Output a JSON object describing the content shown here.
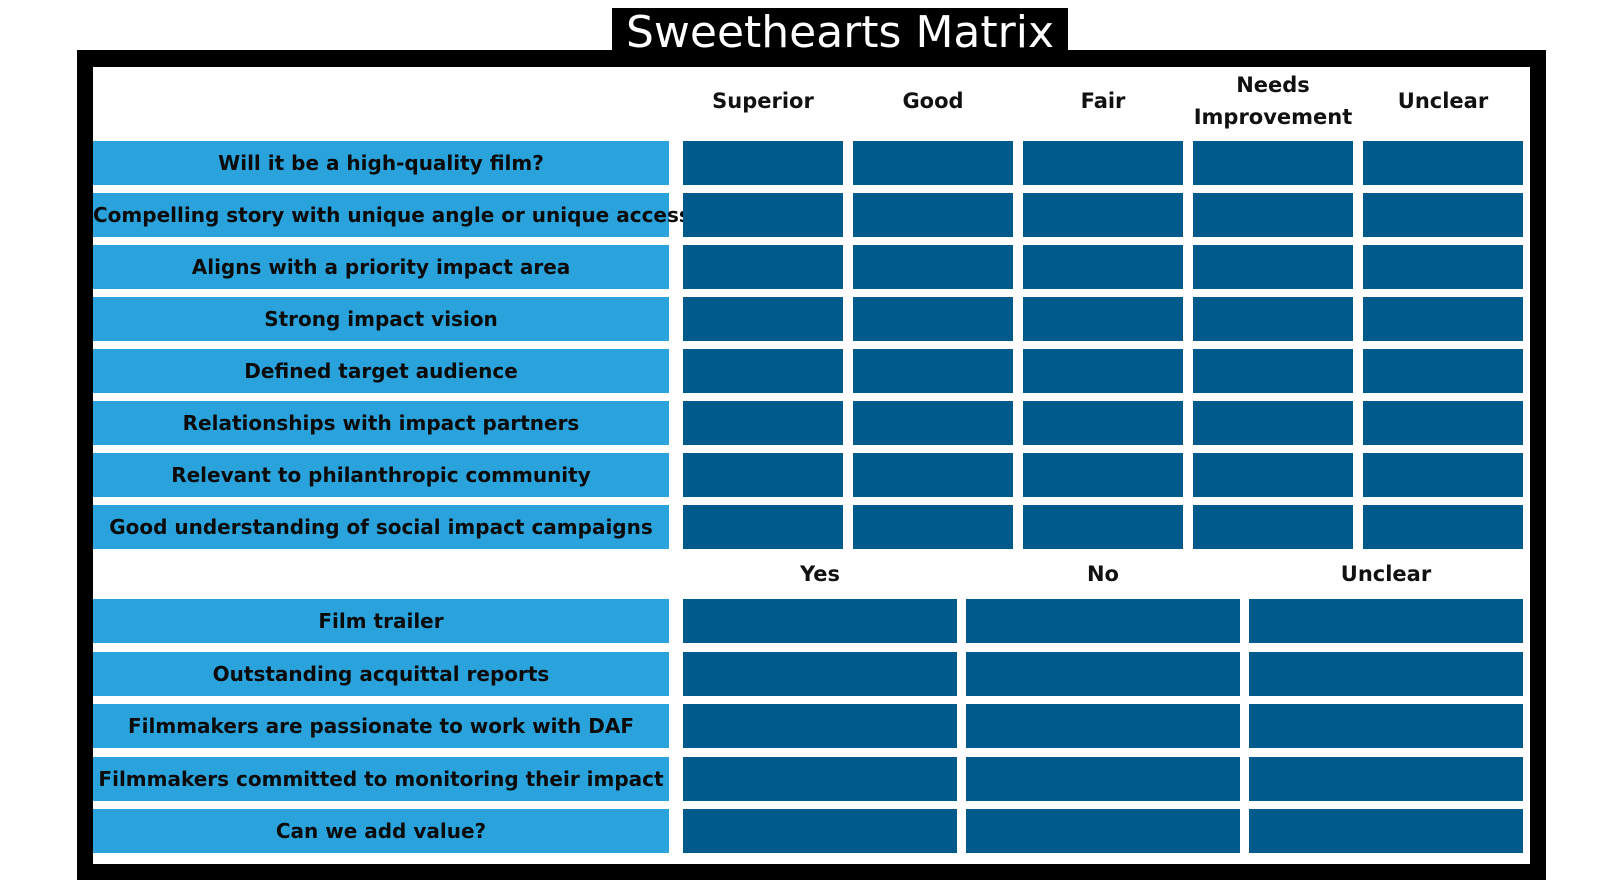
{
  "title": "Sweethearts Matrix",
  "quality_section": {
    "columns": [
      "Superior",
      "Good",
      "Fair",
      "Needs Improvement",
      "Unclear"
    ],
    "rows": [
      "Will it be a high-quality film?",
      "Compelling story with unique angle or unique access",
      "Aligns with a priority impact area",
      "Strong impact vision",
      "Defined target audience",
      "Relationships with impact partners",
      "Relevant to philanthropic community",
      "Good understanding of social impact campaigns"
    ]
  },
  "yesno_section": {
    "columns": [
      "Yes",
      "No",
      "Unclear"
    ],
    "rows": [
      "Film trailer",
      "Outstanding acquittal reports",
      "Filmmakers are passionate to work with DAF",
      "Filmmakers committed to monitoring their impact",
      "Can we add value?"
    ]
  },
  "colors": {
    "label_bg": "#2aa3dc",
    "cell_bg": "#005a8b",
    "frame": "#000000"
  }
}
